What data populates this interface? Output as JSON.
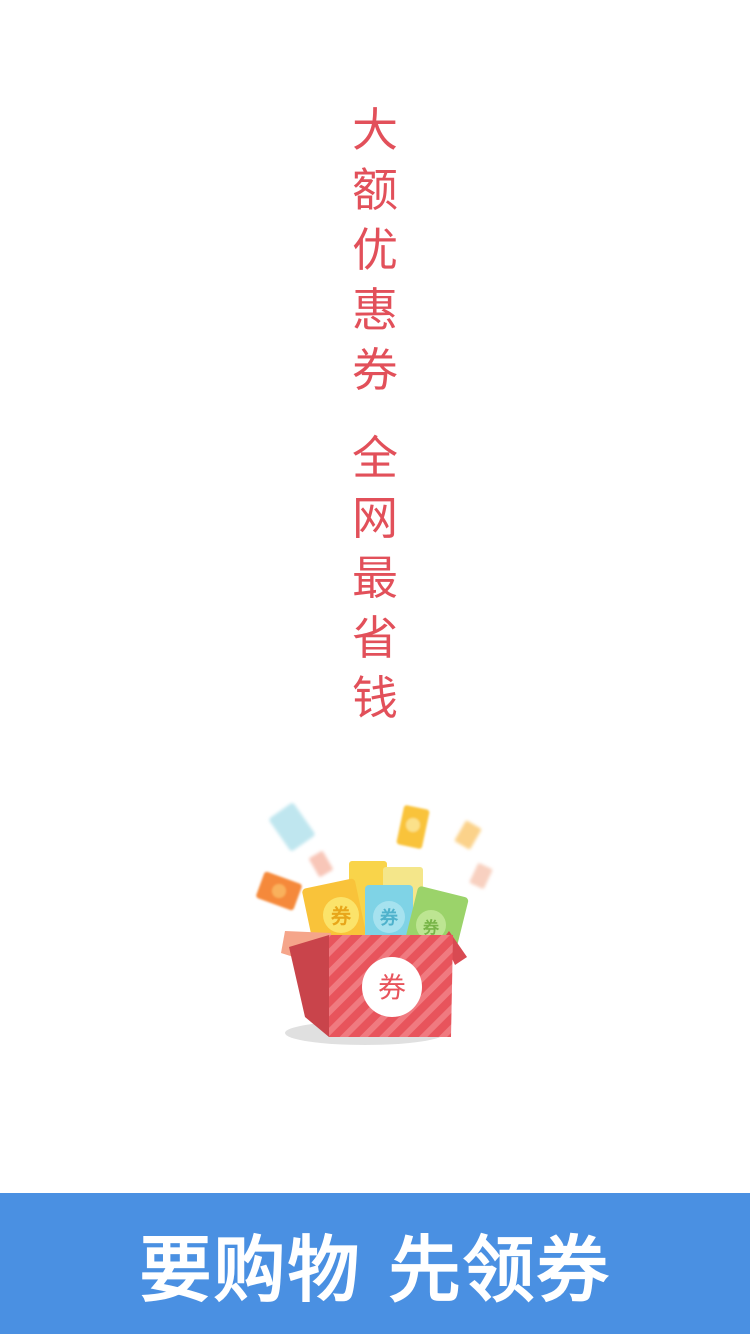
{
  "slogan": {
    "line1": [
      "大",
      "额",
      "优",
      "惠",
      "券"
    ],
    "line2": [
      "全",
      "网",
      "最",
      "省",
      "钱"
    ]
  },
  "illustration": {
    "icon": "coupon-gift-box-icon",
    "box_label": "券",
    "coupon_label": "券",
    "colors": {
      "box_red": "#e8545c",
      "box_stripe": "#f07a80",
      "coupon_yellow": "#f9c33a",
      "coupon_blue": "#7fd3e6",
      "coupon_green": "#9bd36a",
      "coupon_orange": "#f5893a"
    }
  },
  "banner": {
    "text": "要购物 先领券",
    "background": "#4a90e2"
  }
}
